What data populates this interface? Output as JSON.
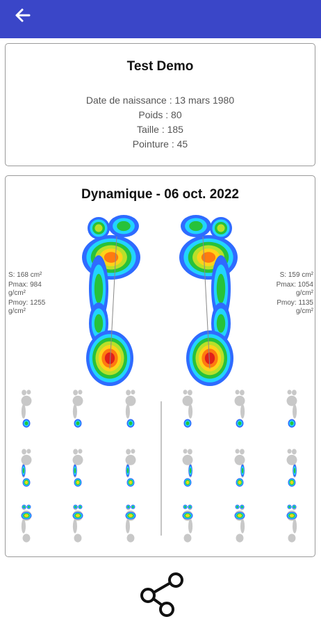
{
  "header": {
    "back": "back"
  },
  "patient": {
    "name": "Test Demo",
    "lines": [
      "Date de naissance : 13 mars 1980",
      "Poids : 80",
      "Taille : 185",
      "Pointure : 45"
    ]
  },
  "analysis": {
    "title": "Dynamique - 06 oct. 2022",
    "left_stats": [
      "S: 168 cm²",
      "Pmax: 984 g/cm²",
      "Pmoy: 1255 g/cm²"
    ],
    "right_stats": [
      "S: 159 cm²",
      "Pmax: 1054 g/cm²",
      "Pmoy: 1135 g/cm²"
    ]
  }
}
